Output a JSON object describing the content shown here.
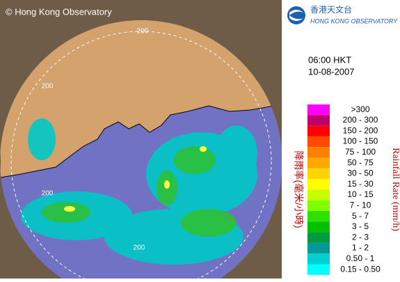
{
  "header": {
    "copyright": "© Hong Kong Observatory",
    "logo_chinese": "香港天文台",
    "logo_english": "HONG KONG OBSERVATORY"
  },
  "time": "06:00 HKT",
  "date": "10-08-2007",
  "range_labels": [
    "200",
    "200",
    "200",
    "200"
  ],
  "legend": {
    "title_chinese": "降雨率(毫米/小時)",
    "title_english": "Rainfall Rate (mm/h)",
    "entries": [
      {
        "label": ">300",
        "color": "#ff00ff"
      },
      {
        "label": "200 - 300",
        "color": "#c0006a"
      },
      {
        "label": "150 - 200",
        "color": "#ff0000"
      },
      {
        "label": "100 - 150",
        "color": "#ff4a00"
      },
      {
        "label": "75 - 100",
        "color": "#ff8000"
      },
      {
        "label": "50 - 75",
        "color": "#ffa800"
      },
      {
        "label": "30 - 50",
        "color": "#ffd400"
      },
      {
        "label": "15 - 30",
        "color": "#ffff00"
      },
      {
        "label": "10 - 15",
        "color": "#c8ff00"
      },
      {
        "label": "7 - 10",
        "color": "#80ff00"
      },
      {
        "label": "5 - 7",
        "color": "#30e000"
      },
      {
        "label": "3 - 5",
        "color": "#00c000"
      },
      {
        "label": "2 - 3",
        "color": "#009a40"
      },
      {
        "label": "1 - 2",
        "color": "#009a9a"
      },
      {
        "label": "0.50 - 1",
        "color": "#00d0d0"
      },
      {
        "label": "0.15 - 0.50",
        "color": "#00ffff"
      }
    ]
  }
}
